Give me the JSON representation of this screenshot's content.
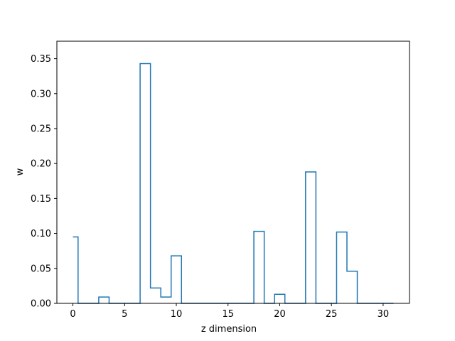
{
  "chart_data": {
    "type": "line",
    "drawstyle": "steps-mid",
    "title": "",
    "xlabel": "z dimension",
    "ylabel": "w",
    "xlim": [
      -1.55,
      32.55
    ],
    "ylim": [
      0,
      0.375
    ],
    "xticks": [
      0,
      5,
      10,
      15,
      20,
      25,
      30
    ],
    "yticks": [
      0.0,
      0.05,
      0.1,
      0.15,
      0.2,
      0.25,
      0.3,
      0.35
    ],
    "grid": false,
    "line_color": "#1f77b4",
    "x": [
      0,
      1,
      2,
      3,
      4,
      5,
      6,
      7,
      8,
      9,
      10,
      11,
      12,
      13,
      14,
      15,
      16,
      17,
      18,
      19,
      20,
      21,
      22,
      23,
      24,
      25,
      26,
      27,
      28,
      29,
      30,
      31
    ],
    "values": [
      0.095,
      0,
      0,
      0.009,
      0,
      0,
      0,
      0.343,
      0.022,
      0.009,
      0.068,
      0,
      0,
      0,
      0,
      0,
      0,
      0,
      0.103,
      0,
      0.013,
      0,
      0,
      0.188,
      0,
      0,
      0.102,
      0.046,
      0,
      0,
      0,
      0
    ]
  }
}
